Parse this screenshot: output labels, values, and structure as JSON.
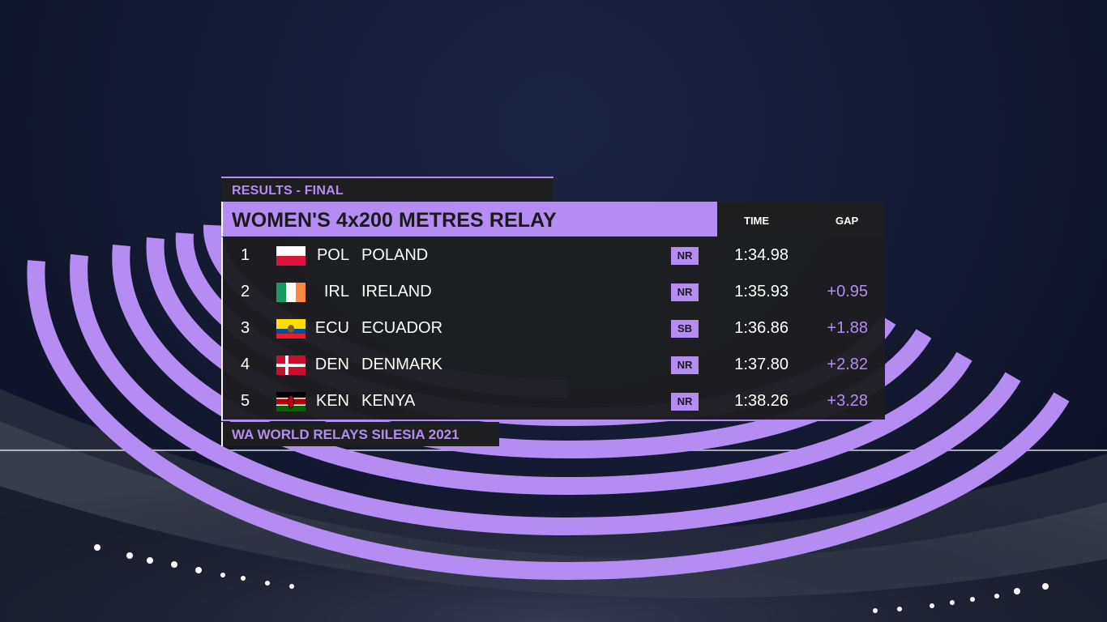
{
  "header": {
    "label": "RESULTS - FINAL"
  },
  "event": {
    "title": "WOMEN'S 4x200 METRES RELAY"
  },
  "columns": {
    "time": "TIME",
    "gap": "GAP"
  },
  "results": [
    {
      "rank": "1",
      "code": "POL",
      "country": "POLAND",
      "flag": "poland-flag-icon",
      "record": "NR",
      "time": "1:34.98",
      "gap": ""
    },
    {
      "rank": "2",
      "code": "IRL",
      "country": "IRELAND",
      "flag": "ireland-flag-icon",
      "record": "NR",
      "time": "1:35.93",
      "gap": "+0.95"
    },
    {
      "rank": "3",
      "code": "ECU",
      "country": "ECUADOR",
      "flag": "ecuador-flag-icon",
      "record": "SB",
      "time": "1:36.86",
      "gap": "+1.88"
    },
    {
      "rank": "4",
      "code": "DEN",
      "country": "DENMARK",
      "flag": "denmark-flag-icon",
      "record": "NR",
      "time": "1:37.80",
      "gap": "+2.82"
    },
    {
      "rank": "5",
      "code": "KEN",
      "country": "KENYA",
      "flag": "kenya-flag-icon",
      "record": "NR",
      "time": "1:38.26",
      "gap": "+3.28"
    }
  ],
  "footer": {
    "label": "WA WORLD RELAYS SILESIA 2021"
  },
  "colors": {
    "accent": "#b48cf2",
    "panel": "#1e1e20",
    "text": "#ffffff",
    "sky": "#141a33"
  }
}
